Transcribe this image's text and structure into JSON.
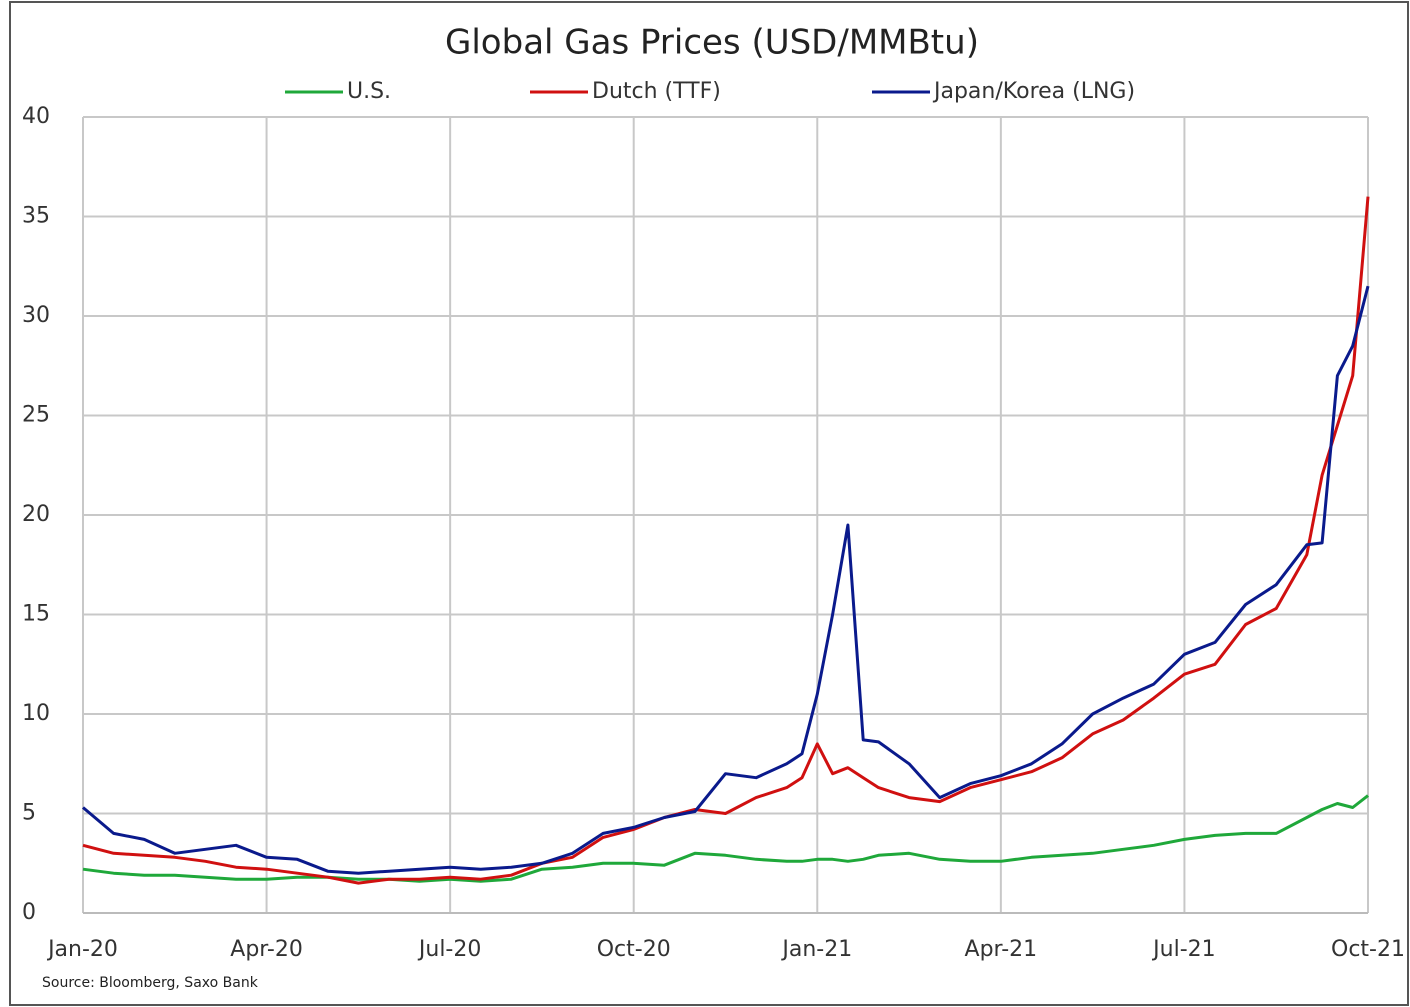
{
  "chart_data": {
    "type": "line",
    "title": "Global Gas Prices (USD/MMBtu)",
    "source": "Source: Bloomberg, Saxo Bank",
    "x": [
      0,
      0.5,
      1,
      1.5,
      2,
      2.5,
      3,
      3.5,
      4,
      4.5,
      5,
      5.5,
      6,
      6.5,
      7,
      7.5,
      8,
      8.5,
      9,
      9.5,
      10,
      10.5,
      11,
      11.5,
      11.75,
      12,
      12.25,
      12.5,
      12.75,
      13,
      13.5,
      14,
      14.5,
      15,
      15.5,
      16,
      16.5,
      17,
      17.5,
      18,
      18.5,
      19,
      19.5,
      20,
      20.25,
      20.5,
      20.75,
      21
    ],
    "xlim": [
      0,
      21
    ],
    "xticks": [
      {
        "value": 0,
        "label": "Jan-20"
      },
      {
        "value": 3,
        "label": "Apr-20"
      },
      {
        "value": 6,
        "label": "Jul-20"
      },
      {
        "value": 9,
        "label": "Oct-20"
      },
      {
        "value": 12,
        "label": "Jan-21"
      },
      {
        "value": 15,
        "label": "Apr-21"
      },
      {
        "value": 18,
        "label": "Jul-21"
      },
      {
        "value": 21,
        "label": "Oct-21"
      }
    ],
    "ylim": [
      0,
      40
    ],
    "yticks": [
      0,
      5,
      10,
      15,
      20,
      25,
      30,
      35,
      40
    ],
    "grid": true,
    "legend": "top",
    "series": [
      {
        "name": "U.S.",
        "color": "#1fa83a",
        "values": [
          2.2,
          2.0,
          1.9,
          1.9,
          1.8,
          1.7,
          1.7,
          1.8,
          1.8,
          1.7,
          1.7,
          1.6,
          1.7,
          1.6,
          1.7,
          2.2,
          2.3,
          2.5,
          2.5,
          2.4,
          3.0,
          2.9,
          2.7,
          2.6,
          2.6,
          2.7,
          2.7,
          2.6,
          2.7,
          2.9,
          3.0,
          2.7,
          2.6,
          2.6,
          2.8,
          2.9,
          3.0,
          3.2,
          3.4,
          3.7,
          3.9,
          4.0,
          4.0,
          4.8,
          5.2,
          5.5,
          5.3,
          5.9
        ]
      },
      {
        "name": "Dutch (TTF)",
        "color": "#d01010",
        "values": [
          3.4,
          3.0,
          2.9,
          2.8,
          2.6,
          2.3,
          2.2,
          2.0,
          1.8,
          1.5,
          1.7,
          1.7,
          1.8,
          1.7,
          1.9,
          2.5,
          2.8,
          3.8,
          4.2,
          4.8,
          5.2,
          5.0,
          5.8,
          6.3,
          6.8,
          8.5,
          7.0,
          7.3,
          6.8,
          6.3,
          5.8,
          5.6,
          6.3,
          6.7,
          7.1,
          7.8,
          9.0,
          9.7,
          10.8,
          12.0,
          12.5,
          14.5,
          15.3,
          18.0,
          22.0,
          24.5,
          27.0,
          36.0
        ]
      },
      {
        "name": "Japan/Korea (LNG)",
        "color": "#0a1a8c",
        "values": [
          5.3,
          4.0,
          3.7,
          3.0,
          3.2,
          3.4,
          2.8,
          2.7,
          2.1,
          2.0,
          2.1,
          2.2,
          2.3,
          2.2,
          2.3,
          2.5,
          3.0,
          4.0,
          4.3,
          4.8,
          5.1,
          7.0,
          6.8,
          7.5,
          8.0,
          11.0,
          15.0,
          19.5,
          8.7,
          8.6,
          7.5,
          5.8,
          6.5,
          6.9,
          7.5,
          8.5,
          10.0,
          10.8,
          11.5,
          13.0,
          13.6,
          15.5,
          16.5,
          18.5,
          18.6,
          27.0,
          28.5,
          31.5
        ]
      }
    ]
  }
}
